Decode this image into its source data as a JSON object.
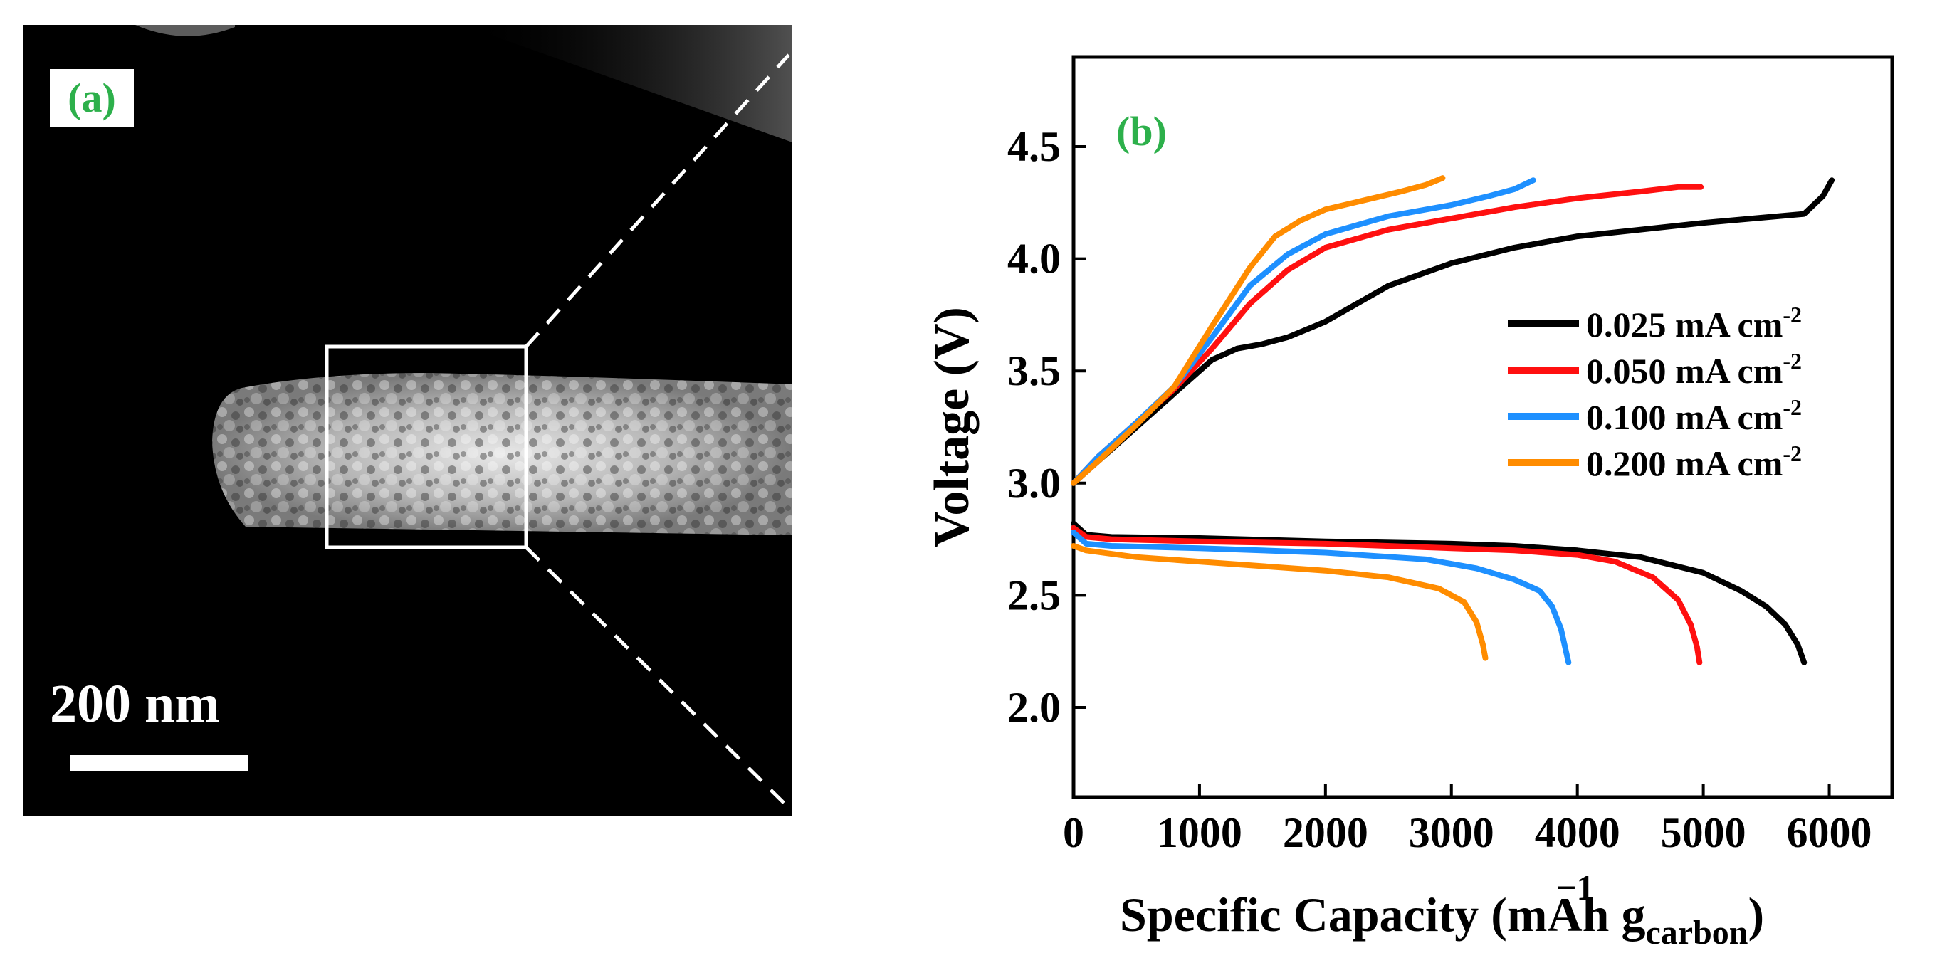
{
  "panel_a": {
    "label": "(a)",
    "scale_bar_text": "200 nm"
  },
  "panel_b": {
    "label": "(b)"
  },
  "colors": {
    "label_green": "#2db04b",
    "series_black": "#000000",
    "series_red": "#ff1010",
    "series_blue": "#1e90ff",
    "series_orange": "#ff8c00"
  },
  "chart_data": {
    "type": "line",
    "title": "",
    "xlabel": "Specific Capacity (mAh g",
    "xlabel_sup": "−1",
    "xlabel_sub": "carbon",
    "xlabel_close": ")",
    "ylabel": "Voltage (V)",
    "xlim": [
      0,
      6500
    ],
    "ylim": [
      1.6,
      4.9
    ],
    "xticks": [
      0,
      1000,
      2000,
      3000,
      4000,
      5000,
      6000
    ],
    "xtick_labels": [
      "0",
      "1000",
      "2000",
      "3000",
      "4000",
      "5000",
      "6000"
    ],
    "yticks": [
      2.0,
      2.5,
      3.0,
      3.5,
      4.0,
      4.5
    ],
    "ytick_labels": [
      "2.0",
      "2.5",
      "3.0",
      "3.5",
      "4.0",
      "4.5"
    ],
    "legend": {
      "placement": "right",
      "units_prefix": "mA cm",
      "units_sup": "-2"
    },
    "series": [
      {
        "name": "0.025",
        "color": "#000000",
        "charge": [
          [
            0,
            3.0
          ],
          [
            200,
            3.1
          ],
          [
            500,
            3.25
          ],
          [
            800,
            3.4
          ],
          [
            1100,
            3.55
          ],
          [
            1300,
            3.6
          ],
          [
            1500,
            3.62
          ],
          [
            1700,
            3.65
          ],
          [
            2000,
            3.72
          ],
          [
            2500,
            3.88
          ],
          [
            3000,
            3.98
          ],
          [
            3500,
            4.05
          ],
          [
            4000,
            4.1
          ],
          [
            4500,
            4.13
          ],
          [
            5000,
            4.16
          ],
          [
            5400,
            4.18
          ],
          [
            5800,
            4.2
          ],
          [
            5950,
            4.28
          ],
          [
            6020,
            4.35
          ]
        ],
        "discharge": [
          [
            0,
            2.82
          ],
          [
            100,
            2.77
          ],
          [
            300,
            2.76
          ],
          [
            1000,
            2.755
          ],
          [
            2000,
            2.74
          ],
          [
            3000,
            2.73
          ],
          [
            3500,
            2.72
          ],
          [
            4000,
            2.7
          ],
          [
            4500,
            2.67
          ],
          [
            5000,
            2.6
          ],
          [
            5300,
            2.52
          ],
          [
            5500,
            2.45
          ],
          [
            5650,
            2.37
          ],
          [
            5750,
            2.28
          ],
          [
            5800,
            2.2
          ]
        ]
      },
      {
        "name": "0.050",
        "color": "#ff1010",
        "charge": [
          [
            0,
            3.0
          ],
          [
            200,
            3.12
          ],
          [
            500,
            3.27
          ],
          [
            800,
            3.42
          ],
          [
            1100,
            3.6
          ],
          [
            1400,
            3.8
          ],
          [
            1700,
            3.95
          ],
          [
            2000,
            4.05
          ],
          [
            2500,
            4.13
          ],
          [
            3000,
            4.18
          ],
          [
            3500,
            4.23
          ],
          [
            4000,
            4.27
          ],
          [
            4500,
            4.3
          ],
          [
            4800,
            4.32
          ],
          [
            4980,
            4.32
          ]
        ],
        "discharge": [
          [
            0,
            2.8
          ],
          [
            100,
            2.76
          ],
          [
            300,
            2.75
          ],
          [
            1000,
            2.74
          ],
          [
            2000,
            2.73
          ],
          [
            3000,
            2.71
          ],
          [
            3500,
            2.7
          ],
          [
            4000,
            2.68
          ],
          [
            4300,
            2.65
          ],
          [
            4600,
            2.58
          ],
          [
            4800,
            2.48
          ],
          [
            4900,
            2.37
          ],
          [
            4950,
            2.27
          ],
          [
            4970,
            2.2
          ]
        ]
      },
      {
        "name": "0.100",
        "color": "#1e90ff",
        "charge": [
          [
            0,
            3.0
          ],
          [
            200,
            3.12
          ],
          [
            500,
            3.27
          ],
          [
            800,
            3.43
          ],
          [
            1100,
            3.65
          ],
          [
            1400,
            3.88
          ],
          [
            1700,
            4.02
          ],
          [
            2000,
            4.11
          ],
          [
            2500,
            4.19
          ],
          [
            3000,
            4.24
          ],
          [
            3300,
            4.28
          ],
          [
            3500,
            4.31
          ],
          [
            3650,
            4.35
          ]
        ],
        "discharge": [
          [
            0,
            2.78
          ],
          [
            100,
            2.73
          ],
          [
            300,
            2.72
          ],
          [
            1000,
            2.71
          ],
          [
            2000,
            2.69
          ],
          [
            2800,
            2.66
          ],
          [
            3200,
            2.62
          ],
          [
            3500,
            2.57
          ],
          [
            3700,
            2.52
          ],
          [
            3800,
            2.45
          ],
          [
            3870,
            2.35
          ],
          [
            3910,
            2.25
          ],
          [
            3930,
            2.2
          ]
        ]
      },
      {
        "name": "0.200",
        "color": "#ff8c00",
        "charge": [
          [
            0,
            3.0
          ],
          [
            200,
            3.1
          ],
          [
            500,
            3.26
          ],
          [
            800,
            3.43
          ],
          [
            1100,
            3.7
          ],
          [
            1400,
            3.96
          ],
          [
            1600,
            4.1
          ],
          [
            1800,
            4.17
          ],
          [
            2000,
            4.22
          ],
          [
            2300,
            4.26
          ],
          [
            2600,
            4.3
          ],
          [
            2800,
            4.33
          ],
          [
            2930,
            4.36
          ]
        ],
        "discharge": [
          [
            0,
            2.72
          ],
          [
            100,
            2.7
          ],
          [
            500,
            2.67
          ],
          [
            1000,
            2.65
          ],
          [
            1500,
            2.63
          ],
          [
            2000,
            2.61
          ],
          [
            2500,
            2.58
          ],
          [
            2900,
            2.53
          ],
          [
            3100,
            2.47
          ],
          [
            3200,
            2.38
          ],
          [
            3250,
            2.28
          ],
          [
            3270,
            2.22
          ]
        ]
      }
    ]
  }
}
